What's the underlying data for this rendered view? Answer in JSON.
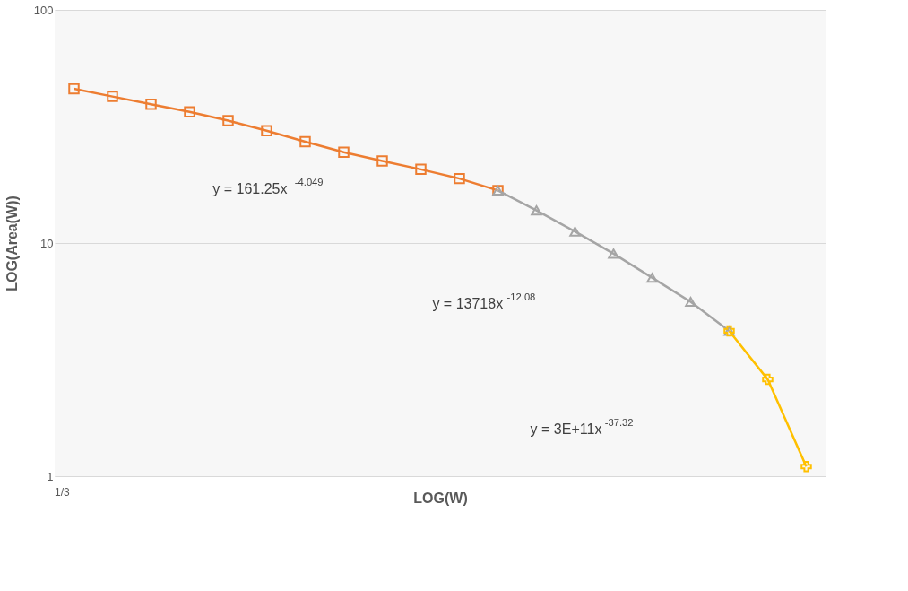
{
  "chart_data": {
    "type": "line",
    "xlabel": "LOG(W)",
    "ylabel": "LOG(Area(W))",
    "categories": [
      null,
      null,
      null,
      null,
      null,
      null,
      null,
      null,
      null,
      null,
      null,
      null,
      null,
      null,
      null,
      null,
      null,
      null,
      null,
      null
    ],
    "series": [
      {
        "color": "#ed7d31",
        "marker": "square",
        "values": [
          45.9,
          42.5,
          39.4,
          36.5,
          33.5,
          30.3,
          27.2,
          24.5,
          22.5,
          20.7,
          18.9,
          16.8,
          null,
          null,
          null,
          null,
          null,
          null,
          null,
          null
        ]
      },
      {
        "color": "#a5a5a5",
        "marker": "triangle",
        "values": [
          null,
          null,
          null,
          null,
          null,
          null,
          null,
          null,
          null,
          null,
          null,
          16.8,
          13.8,
          11.2,
          9.0,
          7.1,
          5.6,
          4.2,
          null,
          null
        ]
      },
      {
        "color": "#ffc000",
        "marker": "cross",
        "values": [
          null,
          null,
          null,
          null,
          null,
          null,
          null,
          null,
          null,
          null,
          null,
          null,
          null,
          null,
          null,
          null,
          null,
          4.2,
          2.6,
          1.1
        ]
      }
    ],
    "log": "y",
    "ylim": [
      1,
      100
    ],
    "yticks": [
      1,
      10,
      100
    ],
    "grid": "y",
    "annotations": [
      "y = 161.25x$^{-4.049}$",
      "y = 13718x$^{-12.08}$",
      "y = 3E+11x$^{-37.32}$",
      "1/3"
    ]
  }
}
